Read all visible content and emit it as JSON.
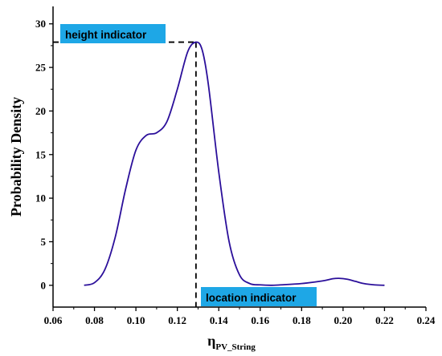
{
  "chart_data": {
    "type": "line",
    "title": "",
    "xlabel_main": "η",
    "xlabel_sub": "PV_String",
    "ylabel": "Probability Density",
    "xlim": [
      0.06,
      0.24
    ],
    "ylim": [
      -2.5,
      32
    ],
    "x_ticks": [
      "0.06",
      "0.08",
      "0.10",
      "0.12",
      "0.14",
      "0.16",
      "0.18",
      "0.20",
      "0.22",
      "0.24"
    ],
    "y_ticks": [
      "0",
      "5",
      "10",
      "15",
      "20",
      "25",
      "30"
    ],
    "grid": false,
    "line_color": "#2b0f9a",
    "annotation_bg": "#1ea7e6",
    "series": [
      {
        "x": [
          0.075,
          0.08,
          0.085,
          0.09,
          0.095,
          0.1,
          0.105,
          0.11,
          0.115,
          0.12,
          0.125,
          0.129,
          0.132,
          0.135,
          0.14,
          0.145,
          0.15,
          0.155,
          0.16,
          0.165,
          0.17,
          0.18,
          0.19,
          0.195,
          0.198,
          0.202,
          0.206,
          0.21,
          0.215,
          0.22
        ],
        "y": [
          0.0,
          0.3,
          1.8,
          5.5,
          11.0,
          15.5,
          17.2,
          17.5,
          18.8,
          22.5,
          26.8,
          27.9,
          27.0,
          23.0,
          13.0,
          5.0,
          1.2,
          0.2,
          0.05,
          0.0,
          0.05,
          0.2,
          0.5,
          0.75,
          0.8,
          0.7,
          0.45,
          0.2,
          0.05,
          0.0
        ]
      }
    ],
    "annotations": [
      {
        "text": "height indicator",
        "x": 0.129,
        "y": 27.9
      },
      {
        "text": "location indicator",
        "x": 0.129,
        "y": 0
      }
    ]
  }
}
